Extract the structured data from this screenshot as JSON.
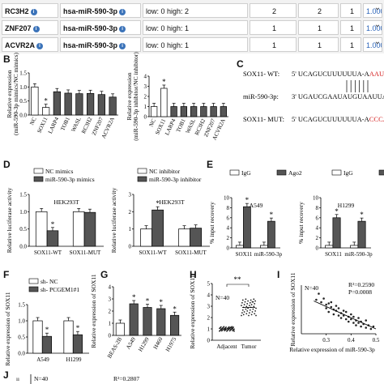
{
  "table": {
    "rows": [
      {
        "gene": "RC3H2",
        "mirna": "hsa-miR-590-3p",
        "level": "low: 0  high: 2",
        "c1": "2",
        "c2": "2",
        "c3": "1",
        "score": "1.000"
      },
      {
        "gene": "ZNF207",
        "mirna": "hsa-miR-590-3p",
        "level": "low: 0  high: 1",
        "c1": "1",
        "c2": "1",
        "c3": "1",
        "score": "1.000"
      },
      {
        "gene": "ACVR2A",
        "mirna": "hsa-miR-590-3p",
        "level": "low: 0  high: 1",
        "c1": "1",
        "c2": "1",
        "c3": "1",
        "score": "1.000"
      }
    ],
    "colors": {
      "link": "#2a63b8",
      "icon": "#3b73b9"
    }
  },
  "panel_labels": [
    "B",
    "C",
    "D",
    "E",
    "F",
    "G",
    "H",
    "I",
    "J"
  ],
  "seq": {
    "wt_label": "SOX11- WT:",
    "wt_pre": "5' UCAGUCUUUUUUA-A",
    "wt_site": "AAUUAA",
    "wt_post": "3'",
    "mir_label": "miR-590-3p:",
    "mir_pre": "3' UGAUCGAAUAUGU",
    "mir_site": "AAUUAA",
    "mir_post": "5'",
    "mut_label": "SOX11- MUT:",
    "mut_pre": "5' UCAGUCUUUUUUA-A",
    "mut_site": "CCCAGGA",
    "mut_post": "3'",
    "red": "#d42020"
  },
  "chart_data": [
    {
      "id": "B1",
      "type": "bar",
      "ylabel": "Relative expression (miR-590-3p mimics/NC mimics)",
      "ylim": [
        0,
        1.5
      ],
      "yticks": [
        "0.0",
        "0.5",
        "1.0",
        "1.5"
      ],
      "categories": [
        "NC",
        "SOX11",
        "LARP4",
        "TOB1",
        "WASL",
        "RC3H2",
        "ZNF207",
        "ACVR2A"
      ],
      "values": [
        1.0,
        0.27,
        0.83,
        0.78,
        0.76,
        0.77,
        0.73,
        0.64
      ],
      "fills": [
        "#ffffff",
        "#ffffff",
        "#555555",
        "#555555",
        "#555555",
        "#555555",
        "#555555",
        "#555555"
      ],
      "stars": [
        1
      ]
    },
    {
      "id": "B2",
      "type": "bar",
      "ylabel": "Relative expression (miR-590-3p inhibitor/NC inhibitor)",
      "ylim": [
        0,
        4
      ],
      "yticks": [
        "0",
        "1",
        "2",
        "3",
        "4"
      ],
      "categories": [
        "NC",
        "SOX11",
        "LARP4",
        "TOB1",
        "WASL",
        "RC3H2",
        "ZNF207",
        "ACVR2A"
      ],
      "values": [
        1.0,
        2.8,
        1.0,
        1.0,
        1.0,
        1.0,
        1.0,
        1.0
      ],
      "fills": [
        "#ffffff",
        "#ffffff",
        "#555555",
        "#555555",
        "#555555",
        "#555555",
        "#555555",
        "#555555"
      ],
      "stars": [
        1
      ]
    },
    {
      "id": "D1",
      "type": "bar",
      "title": "HEK293T",
      "ylabel": "Relative luciferase activity",
      "ylim": [
        0,
        1.5
      ],
      "yticks": [
        "0.0",
        "0.5",
        "1.0",
        "1.5"
      ],
      "categories": [
        "SOX11-WT",
        "SOX11-MUT"
      ],
      "series": [
        {
          "name": "NC mimics",
          "values": [
            1.0,
            1.0
          ],
          "fill": "#ffffff"
        },
        {
          "name": "miR-590-3p mimics",
          "values": [
            0.45,
            0.98
          ],
          "fill": "#555555"
        }
      ],
      "stars": [
        [
          0,
          1
        ]
      ]
    },
    {
      "id": "D2",
      "type": "bar",
      "title": "HEK293T",
      "ylabel": "Relative luciferase activity",
      "ylim": [
        0,
        3
      ],
      "yticks": [
        "0",
        "1",
        "2",
        "3"
      ],
      "categories": [
        "SOX11-WT",
        "SOX11-MUT"
      ],
      "series": [
        {
          "name": "NC inhibitor",
          "values": [
            1.0,
            1.0
          ],
          "fill": "#ffffff"
        },
        {
          "name": "miR-590-3p inhibitor",
          "values": [
            2.1,
            1.05
          ],
          "fill": "#555555"
        }
      ],
      "stars": [
        [
          0,
          1
        ]
      ]
    },
    {
      "id": "E1",
      "type": "bar",
      "title": "A549",
      "ylabel": "% input recovery",
      "ylim": [
        0,
        10
      ],
      "yticks": [
        "0",
        "2",
        "4",
        "6",
        "8",
        "10"
      ],
      "categories": [
        "SOX11",
        "miR-590-3p"
      ],
      "series": [
        {
          "name": "IgG",
          "values": [
            0.5,
            0.5
          ],
          "fill": "#ffffff"
        },
        {
          "name": "Ago2",
          "values": [
            8.2,
            5.3
          ],
          "fill": "#555555"
        }
      ],
      "stars": [
        [
          0,
          1
        ],
        [
          1,
          1
        ]
      ]
    },
    {
      "id": "E2",
      "type": "bar",
      "title": "H1299",
      "ylabel": "% input recovery",
      "ylim": [
        0,
        10
      ],
      "yticks": [
        "0",
        "2",
        "4",
        "6",
        "8",
        "10"
      ],
      "categories": [
        "SOX11",
        "miR-590-3p"
      ],
      "series": [
        {
          "name": "IgG",
          "values": [
            0.5,
            0.5
          ],
          "fill": "#ffffff"
        },
        {
          "name": "Ago2",
          "values": [
            6.0,
            5.3
          ],
          "fill": "#555555"
        }
      ],
      "stars": [
        [
          0,
          1
        ],
        [
          1,
          1
        ]
      ]
    },
    {
      "id": "F",
      "type": "bar",
      "ylabel": "Relative expression of SOX11",
      "ylim": [
        0,
        1.5
      ],
      "yticks": [
        "0.0",
        "0.5",
        "1.0",
        "1.5"
      ],
      "categories": [
        "A549",
        "H1299"
      ],
      "series": [
        {
          "name": "sh- NC",
          "values": [
            1.0,
            1.0
          ],
          "fill": "#ffffff"
        },
        {
          "name": "sh- PCGEM1#1",
          "values": [
            0.52,
            0.57
          ],
          "fill": "#555555"
        }
      ],
      "stars": [
        [
          0,
          1
        ],
        [
          1,
          1
        ]
      ]
    },
    {
      "id": "G",
      "type": "bar",
      "ylabel": "Relative expression of SOX11",
      "ylim": [
        0,
        4
      ],
      "yticks": [
        "0",
        "1",
        "2",
        "3",
        "4"
      ],
      "categories": [
        "BEAS-2B",
        "A549",
        "H1299",
        "H460",
        "H1975"
      ],
      "values": [
        1.0,
        2.6,
        2.3,
        2.2,
        1.65
      ],
      "fills": [
        "#ffffff",
        "#555555",
        "#555555",
        "#555555",
        "#555555"
      ],
      "stars": [
        1,
        2,
        3,
        4
      ]
    },
    {
      "id": "H",
      "type": "scatter",
      "annotation": "N=40",
      "sig": "**",
      "ylabel": "Relative expression of SOX11",
      "ylim": [
        0,
        5
      ],
      "yticks": [
        "0",
        "1",
        "2",
        "3",
        "4",
        "5"
      ],
      "categories": [
        "Adjacent",
        "Tumor"
      ],
      "means": [
        1.0,
        2.9
      ],
      "sd": [
        0.12,
        0.45
      ]
    },
    {
      "id": "I",
      "type": "scatter",
      "annotation": "N=40",
      "r2": "R²=0.2590",
      "p": "P=0.0008",
      "ylabel": "Relative expression of SOX11",
      "xlabel": "Relative expression of miR-590-3p",
      "xlim": [
        0.2,
        0.5
      ],
      "ylim": [
        1,
        5
      ],
      "xticks": [
        "0.3",
        "0.4",
        "0.5"
      ],
      "points": [
        [
          0.26,
          3.8
        ],
        [
          0.27,
          4.3
        ],
        [
          0.28,
          3.6
        ],
        [
          0.29,
          3.9
        ],
        [
          0.3,
          3.4
        ],
        [
          0.3,
          3.1
        ],
        [
          0.31,
          3.5
        ],
        [
          0.31,
          2.8
        ],
        [
          0.32,
          3.2
        ],
        [
          0.32,
          3.6
        ],
        [
          0.33,
          3.0
        ],
        [
          0.33,
          2.6
        ],
        [
          0.34,
          3.3
        ],
        [
          0.34,
          2.9
        ],
        [
          0.35,
          2.5
        ],
        [
          0.35,
          3.1
        ],
        [
          0.36,
          2.7
        ],
        [
          0.36,
          2.3
        ],
        [
          0.37,
          2.9
        ],
        [
          0.37,
          2.5
        ],
        [
          0.38,
          2.2
        ],
        [
          0.38,
          2.8
        ],
        [
          0.39,
          2.4
        ],
        [
          0.39,
          2.0
        ],
        [
          0.4,
          2.6
        ],
        [
          0.4,
          2.2
        ],
        [
          0.41,
          1.9
        ],
        [
          0.41,
          2.4
        ],
        [
          0.42,
          2.1
        ],
        [
          0.42,
          1.7
        ],
        [
          0.43,
          2.3
        ],
        [
          0.43,
          1.9
        ],
        [
          0.44,
          2.0
        ],
        [
          0.44,
          1.6
        ],
        [
          0.45,
          1.8
        ],
        [
          0.46,
          2.1
        ],
        [
          0.46,
          1.5
        ],
        [
          0.47,
          1.7
        ],
        [
          0.48,
          1.4
        ],
        [
          0.49,
          1.6
        ]
      ],
      "fit": [
        [
          0.25,
          3.7
        ],
        [
          0.5,
          1.4
        ]
      ]
    },
    {
      "id": "J",
      "type": "scatter",
      "annotation": "N=40",
      "r2": "R²=0.2807",
      "ytick_partial": "ıı"
    }
  ]
}
